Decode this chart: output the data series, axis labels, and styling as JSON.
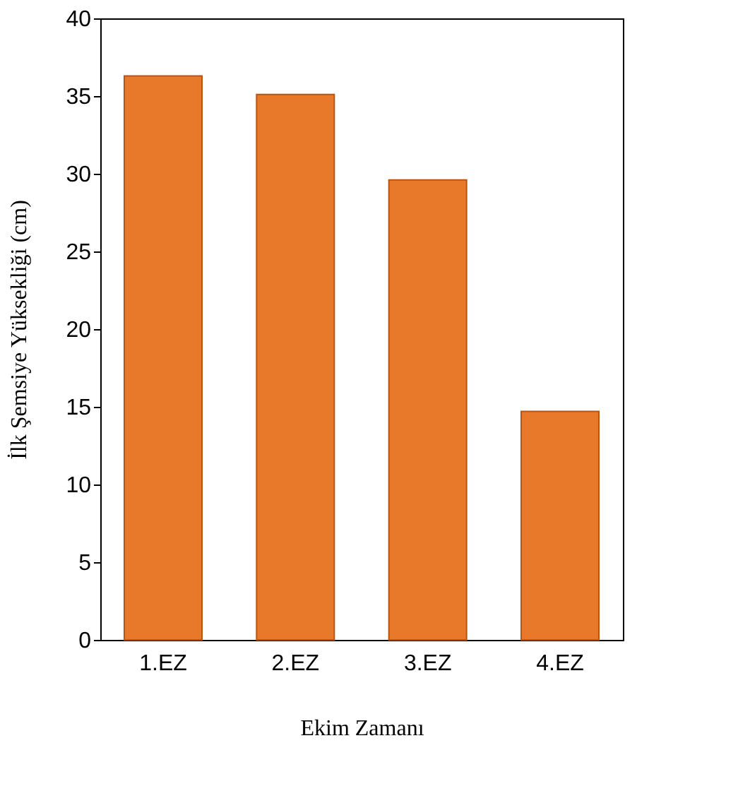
{
  "chart_data": {
    "type": "bar",
    "xlabel": "Ekim Zamanı",
    "ylabel": "İlk Şemsiye Yüksekliği (cm)",
    "categories": [
      "1.EZ",
      "2.EZ",
      "3.EZ",
      "4.EZ"
    ],
    "values": [
      36.3,
      35.1,
      29.6,
      14.7
    ],
    "color": "#e8782a",
    "ylim": [
      0,
      40
    ],
    "yticks": [
      0,
      5,
      10,
      15,
      20,
      25,
      30,
      35,
      40
    ],
    "grid": false
  }
}
